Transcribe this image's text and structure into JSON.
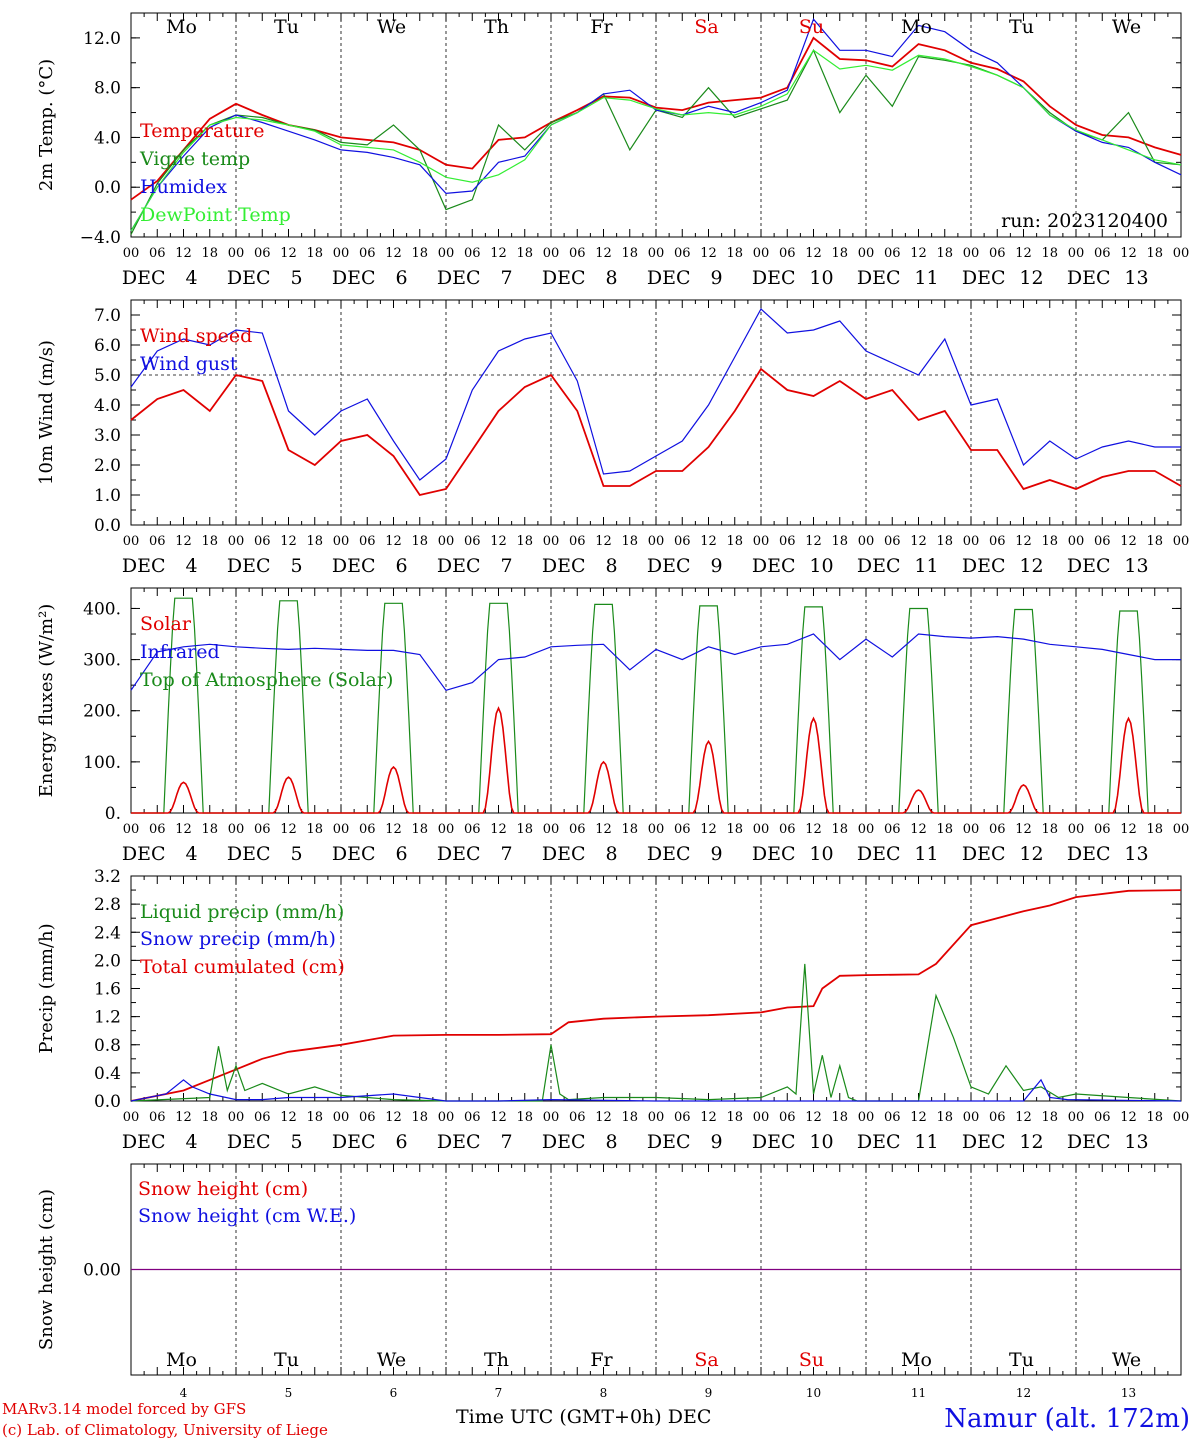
{
  "colors": {
    "red": "#e00000",
    "green": "#1a8a1a",
    "blue": "#1010e0",
    "lightgreen": "#33ee33",
    "purple": "#800080"
  },
  "week_labels": [
    "Mo",
    "Tu",
    "We",
    "Th",
    "Fr",
    "Sa",
    "Su",
    "Mo",
    "Tu",
    "We"
  ],
  "weekend_index": [
    5,
    6
  ],
  "hour_ticks": [
    "00",
    "06",
    "12",
    "18"
  ],
  "day_axis": {
    "month": "DEC",
    "days": [
      "4",
      "5",
      "6",
      "7",
      "8",
      "9",
      "10",
      "11",
      "12",
      "13"
    ]
  },
  "run_label": "run: 2023120400",
  "footer": {
    "model": "MARv3.14 model forced by GFS",
    "copyright": "(c) Lab. of Climatology, University of Liege",
    "xaxis": "Time UTC (GMT+0h) DEC",
    "station": "Namur (alt. 172m)"
  },
  "chart_data": [
    {
      "type": "line",
      "id": "temp",
      "ylabel": "2m Temp. (°C)",
      "ylim": [
        -4,
        14
      ],
      "yticks": [
        {
          "v": 12,
          "t": "12.0"
        },
        {
          "v": 8,
          "t": "8.0"
        },
        {
          "v": 4,
          "t": "4.0"
        },
        {
          "v": 0,
          "t": "0.0"
        },
        {
          "v": -4,
          "t": "−4.0"
        }
      ],
      "legend": [
        "Temperature",
        "Vigne temp",
        "Humidex",
        "DewPoint Temp"
      ],
      "series": [
        {
          "name": "Temperature",
          "color": "red",
          "x": [
            0,
            6,
            12,
            18,
            24,
            30,
            36,
            42,
            48,
            54,
            60,
            66,
            72,
            78,
            84,
            90,
            96,
            102,
            108,
            114,
            120,
            126,
            132,
            138,
            144,
            150,
            156,
            162,
            168,
            174,
            180,
            186,
            192,
            198,
            204,
            210,
            216,
            222,
            228,
            234,
            240
          ],
          "values": [
            -1.0,
            0.5,
            3.0,
            5.5,
            6.7,
            5.8,
            5.0,
            4.6,
            4.0,
            3.8,
            3.6,
            3.0,
            1.8,
            1.5,
            3.8,
            4.0,
            5.2,
            6.2,
            7.3,
            7.2,
            6.4,
            6.2,
            6.8,
            7.0,
            7.2,
            8.0,
            12.0,
            10.3,
            10.2,
            9.7,
            11.5,
            11.0,
            10.0,
            9.5,
            8.5,
            6.5,
            5.0,
            4.2,
            4.0,
            3.2,
            2.6
          ]
        },
        {
          "name": "Vigne temp",
          "color": "green",
          "x": [
            0,
            6,
            12,
            18,
            24,
            30,
            36,
            42,
            48,
            54,
            60,
            66,
            72,
            78,
            84,
            90,
            96,
            102,
            108,
            114,
            120,
            126,
            132,
            138,
            144,
            150,
            156,
            162,
            168,
            174,
            180,
            186,
            192,
            198,
            204,
            210,
            216,
            222,
            228,
            234,
            240
          ],
          "values": [
            -3.8,
            0.3,
            3.0,
            5.0,
            5.8,
            5.6,
            5.0,
            4.6,
            3.6,
            3.4,
            5.0,
            3.0,
            -1.8,
            -1.0,
            5.0,
            3.0,
            5.2,
            6.0,
            7.5,
            3.0,
            6.2,
            5.6,
            8.0,
            5.6,
            6.3,
            7.0,
            11.0,
            6.0,
            9.0,
            6.5,
            10.5,
            10.2,
            9.8,
            9.0,
            8.0,
            6.0,
            4.5,
            3.8,
            6.0,
            2.0,
            1.8
          ]
        },
        {
          "name": "Humidex",
          "color": "blue",
          "x": [
            0,
            6,
            12,
            18,
            24,
            30,
            36,
            42,
            48,
            54,
            60,
            66,
            72,
            78,
            84,
            90,
            96,
            102,
            108,
            114,
            120,
            126,
            132,
            138,
            144,
            150,
            156,
            162,
            168,
            174,
            180,
            186,
            192,
            198,
            204,
            210,
            216,
            222,
            228,
            234,
            240
          ],
          "values": [
            -3.5,
            0.0,
            2.5,
            4.8,
            5.8,
            5.2,
            4.5,
            3.8,
            3.0,
            2.8,
            2.4,
            1.8,
            -0.5,
            -0.3,
            2.0,
            2.5,
            5.0,
            6.0,
            7.5,
            7.8,
            6.2,
            5.8,
            6.5,
            6.0,
            6.8,
            7.8,
            13.5,
            11.0,
            11.0,
            10.5,
            13.0,
            12.5,
            11.0,
            10.0,
            8.0,
            5.8,
            4.5,
            3.6,
            3.2,
            2.0,
            1.0
          ]
        },
        {
          "name": "DewPoint Temp",
          "color": "lightgreen",
          "x": [
            0,
            6,
            12,
            18,
            24,
            30,
            36,
            42,
            48,
            54,
            60,
            66,
            72,
            78,
            84,
            90,
            96,
            102,
            108,
            114,
            120,
            126,
            132,
            138,
            144,
            150,
            156,
            162,
            168,
            174,
            180,
            186,
            192,
            198,
            204,
            210,
            216,
            222,
            228,
            234,
            240
          ],
          "values": [
            -3.5,
            0.0,
            2.8,
            5.0,
            5.6,
            5.4,
            5.0,
            4.5,
            3.4,
            3.2,
            3.0,
            2.0,
            0.8,
            0.4,
            1.0,
            2.2,
            5.0,
            6.0,
            7.2,
            7.0,
            6.3,
            5.8,
            6.0,
            5.8,
            6.5,
            7.5,
            11.0,
            9.5,
            9.8,
            9.4,
            10.6,
            10.3,
            9.7,
            9.0,
            8.0,
            5.8,
            4.6,
            3.8,
            3.0,
            2.2,
            1.8
          ]
        }
      ]
    },
    {
      "type": "line",
      "id": "wind",
      "ylabel": "10m Wind (m/s)",
      "ylim": [
        0,
        7.5
      ],
      "refline": 5.0,
      "yticks": [
        {
          "v": 7,
          "t": "7.0"
        },
        {
          "v": 6,
          "t": "6.0"
        },
        {
          "v": 5,
          "t": "5.0"
        },
        {
          "v": 4,
          "t": "4.0"
        },
        {
          "v": 3,
          "t": "3.0"
        },
        {
          "v": 2,
          "t": "2.0"
        },
        {
          "v": 1,
          "t": "1.0"
        },
        {
          "v": 0,
          "t": "0.0"
        }
      ],
      "legend": [
        "Wind speed",
        "Wind gust"
      ],
      "series": [
        {
          "name": "Wind speed",
          "color": "red",
          "x": [
            0,
            6,
            12,
            18,
            24,
            30,
            36,
            42,
            48,
            54,
            60,
            66,
            72,
            78,
            84,
            90,
            96,
            102,
            108,
            114,
            120,
            126,
            132,
            138,
            144,
            150,
            156,
            162,
            168,
            174,
            180,
            186,
            192,
            198,
            204,
            210,
            216,
            222,
            228,
            234,
            240
          ],
          "values": [
            3.5,
            4.2,
            4.5,
            3.8,
            5.0,
            4.8,
            2.5,
            2.0,
            2.8,
            3.0,
            2.3,
            1.0,
            1.2,
            2.5,
            3.8,
            4.6,
            5.0,
            3.8,
            1.3,
            1.3,
            1.8,
            1.8,
            2.6,
            3.8,
            5.2,
            4.5,
            4.3,
            4.8,
            4.2,
            4.5,
            3.5,
            3.8,
            2.5,
            2.5,
            1.2,
            1.5,
            1.2,
            1.6,
            1.8,
            1.8,
            1.3
          ]
        },
        {
          "name": "Wind gust",
          "color": "blue",
          "x": [
            0,
            6,
            12,
            18,
            24,
            30,
            36,
            42,
            48,
            54,
            60,
            66,
            72,
            78,
            84,
            90,
            96,
            102,
            108,
            114,
            120,
            126,
            132,
            138,
            144,
            150,
            156,
            162,
            168,
            174,
            180,
            186,
            192,
            198,
            204,
            210,
            216,
            222,
            228,
            234,
            240
          ],
          "values": [
            4.6,
            5.8,
            6.2,
            6.0,
            6.5,
            6.4,
            3.8,
            3.0,
            3.8,
            4.2,
            2.8,
            1.5,
            2.2,
            4.5,
            5.8,
            6.2,
            6.4,
            4.8,
            1.7,
            1.8,
            2.3,
            2.8,
            4.0,
            5.6,
            7.2,
            6.4,
            6.5,
            6.8,
            5.8,
            5.4,
            5.0,
            6.2,
            4.0,
            4.2,
            2.0,
            2.8,
            2.2,
            2.6,
            2.8,
            2.6,
            2.6
          ]
        }
      ]
    },
    {
      "type": "line",
      "id": "energy",
      "ylabel": "Energy fluxes (W/m²)",
      "ylim": [
        0,
        440
      ],
      "yticks": [
        {
          "v": 400,
          "t": "400."
        },
        {
          "v": 300,
          "t": "300."
        },
        {
          "v": 200,
          "t": "200."
        },
        {
          "v": 100,
          "t": "100."
        },
        {
          "v": 0,
          "t": "0."
        }
      ],
      "legend": [
        "Solar",
        "Infrared",
        "Top of Atmosphere (Solar)"
      ],
      "toa_peaks": [
        420,
        415,
        410,
        410,
        408,
        405,
        403,
        400,
        398,
        395
      ],
      "solar_peaks": [
        60,
        70,
        90,
        205,
        100,
        140,
        185,
        45,
        55,
        185
      ],
      "series": [
        {
          "name": "Infrared",
          "color": "blue",
          "x": [
            0,
            6,
            12,
            18,
            24,
            30,
            36,
            42,
            48,
            54,
            60,
            66,
            72,
            78,
            84,
            90,
            96,
            102,
            108,
            114,
            120,
            126,
            132,
            138,
            144,
            150,
            156,
            162,
            168,
            174,
            180,
            186,
            192,
            198,
            204,
            210,
            216,
            222,
            228,
            234,
            240
          ],
          "values": [
            240,
            315,
            325,
            330,
            325,
            322,
            320,
            322,
            320,
            318,
            318,
            310,
            240,
            255,
            300,
            305,
            325,
            328,
            330,
            280,
            320,
            300,
            325,
            310,
            325,
            330,
            350,
            300,
            340,
            305,
            350,
            345,
            342,
            345,
            340,
            330,
            325,
            320,
            310,
            300,
            300
          ]
        }
      ]
    },
    {
      "type": "line",
      "id": "precip",
      "ylabel": "Precip (mm/h)",
      "ylim": [
        0,
        3.2
      ],
      "yticks": [
        {
          "v": 3.2,
          "t": "3.2"
        },
        {
          "v": 2.8,
          "t": "2.8"
        },
        {
          "v": 2.4,
          "t": "2.4"
        },
        {
          "v": 2.0,
          "t": "2.0"
        },
        {
          "v": 1.6,
          "t": "1.6"
        },
        {
          "v": 1.2,
          "t": "1.2"
        },
        {
          "v": 0.8,
          "t": "0.8"
        },
        {
          "v": 0.4,
          "t": "0.4"
        },
        {
          "v": 0.0,
          "t": "0.0"
        }
      ],
      "legend": [
        "Liquid precip (mm/h)",
        "Snow precip (mm/h)",
        "Total cumulated (cm)"
      ],
      "series": [
        {
          "name": "Total cumulated (cm)",
          "color": "red",
          "x": [
            0,
            12,
            18,
            24,
            30,
            36,
            48,
            60,
            72,
            84,
            96,
            100,
            108,
            120,
            132,
            144,
            150,
            156,
            158,
            162,
            168,
            180,
            184,
            192,
            204,
            210,
            216,
            228,
            240
          ],
          "values": [
            0,
            0.15,
            0.3,
            0.45,
            0.6,
            0.7,
            0.8,
            0.93,
            0.94,
            0.94,
            0.95,
            1.12,
            1.17,
            1.2,
            1.22,
            1.26,
            1.33,
            1.35,
            1.6,
            1.78,
            1.79,
            1.8,
            1.95,
            2.5,
            2.7,
            2.78,
            2.9,
            2.99,
            3.0
          ]
        },
        {
          "name": "Liquid precip (mm/h)",
          "color": "green",
          "x": [
            0,
            18,
            20,
            22,
            24,
            26,
            30,
            36,
            42,
            48,
            54,
            60,
            72,
            84,
            94,
            96,
            98,
            100,
            108,
            120,
            132,
            144,
            150,
            152,
            154,
            156,
            158,
            160,
            162,
            164,
            166,
            168,
            180,
            184,
            188,
            192,
            196,
            200,
            204,
            208,
            212,
            216,
            228,
            240
          ],
          "values": [
            0,
            0.05,
            0.78,
            0.15,
            0.5,
            0.15,
            0.25,
            0.1,
            0.2,
            0.08,
            0.05,
            0.02,
            0,
            0,
            0,
            0.8,
            0.1,
            0.02,
            0.05,
            0.05,
            0.02,
            0.05,
            0.2,
            0.1,
            1.95,
            0.1,
            0.65,
            0.05,
            0.5,
            0.05,
            0,
            0,
            0,
            1.5,
            0.9,
            0.2,
            0.1,
            0.5,
            0.15,
            0.2,
            0.05,
            0.1,
            0.05,
            0
          ]
        },
        {
          "name": "Snow precip (mm/h)",
          "color": "blue",
          "x": [
            0,
            8,
            12,
            14,
            18,
            24,
            30,
            36,
            48,
            60,
            72,
            84,
            96,
            120,
            150,
            168,
            204,
            208,
            210,
            214,
            240
          ],
          "values": [
            0,
            0.1,
            0.3,
            0.2,
            0.1,
            0.02,
            0.02,
            0.05,
            0.05,
            0.1,
            0,
            0,
            0.02,
            0,
            0,
            0,
            0,
            0.3,
            0.05,
            0.02,
            0
          ]
        }
      ]
    },
    {
      "type": "line",
      "id": "snow",
      "ylabel": "Snow height (cm)",
      "ylim": [
        -1,
        1
      ],
      "yticks": [
        {
          "v": 0,
          "t": "0.00"
        }
      ],
      "legend": [
        "Snow height (cm)",
        "Snow height (cm W.E.)"
      ],
      "series": [
        {
          "name": "Snow height (cm)",
          "color": "purple",
          "x": [
            0,
            240
          ],
          "values": [
            0,
            0
          ]
        }
      ]
    }
  ]
}
